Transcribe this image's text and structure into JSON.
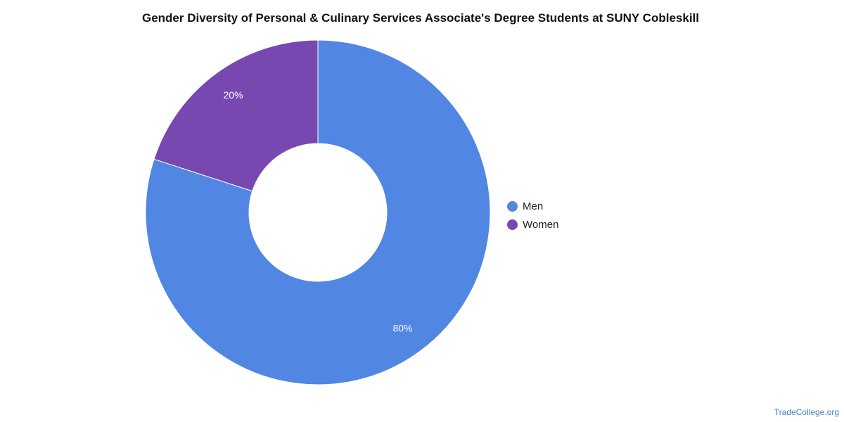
{
  "chart_data": {
    "type": "pie",
    "variant": "donut",
    "title": "Gender Diversity of Personal & Culinary Services Associate's Degree Students at SUNY Cobleskill",
    "categories": [
      "Men",
      "Women"
    ],
    "values": [
      80,
      20
    ],
    "data_labels": [
      "80%",
      "20%"
    ],
    "colors": [
      "#5186E3",
      "#7748B0"
    ],
    "legend_position": "right"
  },
  "watermark": "TradeCollege.org"
}
